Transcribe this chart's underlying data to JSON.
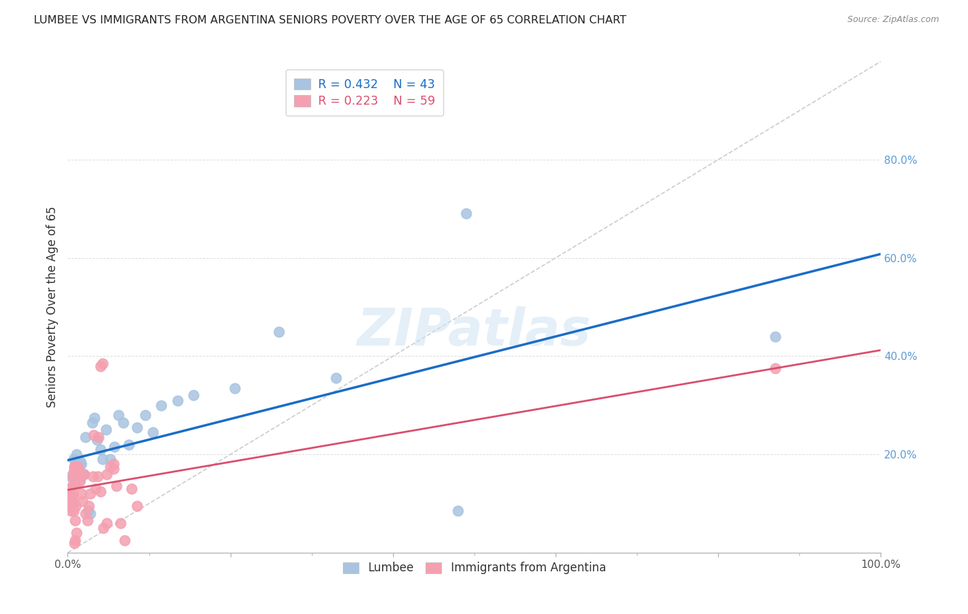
{
  "title": "LUMBEE VS IMMIGRANTS FROM ARGENTINA SENIORS POVERTY OVER THE AGE OF 65 CORRELATION CHART",
  "source": "Source: ZipAtlas.com",
  "ylabel": "Seniors Poverty Over the Age of 65",
  "xlim": [
    0.0,
    1.0
  ],
  "ylim": [
    0.0,
    1.0
  ],
  "lumbee_color": "#a8c4e0",
  "argentina_color": "#f4a0b0",
  "lumbee_line_color": "#1a6cc7",
  "argentina_line_color": "#d94f6e",
  "diagonal_color": "#cccccc",
  "legend_r1": "R = 0.432",
  "legend_n1": "N = 43",
  "legend_r2": "R = 0.223",
  "legend_n2": "N = 59",
  "lumbee_x": [
    0.004,
    0.005,
    0.006,
    0.007,
    0.008,
    0.009,
    0.01,
    0.01,
    0.011,
    0.012,
    0.013,
    0.014,
    0.015,
    0.016,
    0.017,
    0.018,
    0.02,
    0.022,
    0.025,
    0.028,
    0.03,
    0.033,
    0.036,
    0.04,
    0.043,
    0.047,
    0.052,
    0.057,
    0.062,
    0.068,
    0.075,
    0.085,
    0.095,
    0.105,
    0.115,
    0.135,
    0.155,
    0.205,
    0.26,
    0.33,
    0.49,
    0.87,
    0.48
  ],
  "lumbee_y": [
    0.155,
    0.1,
    0.105,
    0.19,
    0.16,
    0.14,
    0.175,
    0.18,
    0.2,
    0.18,
    0.17,
    0.18,
    0.15,
    0.185,
    0.18,
    0.16,
    0.16,
    0.235,
    0.085,
    0.08,
    0.265,
    0.275,
    0.23,
    0.21,
    0.19,
    0.25,
    0.19,
    0.215,
    0.28,
    0.265,
    0.22,
    0.255,
    0.28,
    0.245,
    0.3,
    0.31,
    0.32,
    0.335,
    0.45,
    0.355,
    0.69,
    0.44,
    0.085
  ],
  "argentina_x": [
    0.002,
    0.003,
    0.003,
    0.004,
    0.004,
    0.005,
    0.005,
    0.006,
    0.006,
    0.006,
    0.007,
    0.007,
    0.007,
    0.008,
    0.008,
    0.008,
    0.009,
    0.009,
    0.01,
    0.01,
    0.01,
    0.011,
    0.011,
    0.012,
    0.012,
    0.013,
    0.014,
    0.015,
    0.016,
    0.017,
    0.018,
    0.02,
    0.022,
    0.024,
    0.026,
    0.028,
    0.031,
    0.034,
    0.037,
    0.04,
    0.044,
    0.048,
    0.052,
    0.056,
    0.06,
    0.065,
    0.07,
    0.078,
    0.085,
    0.04,
    0.043,
    0.038,
    0.032,
    0.048,
    0.056,
    0.87,
    0.008,
    0.009,
    0.011
  ],
  "argentina_y": [
    0.12,
    0.095,
    0.13,
    0.085,
    0.095,
    0.1,
    0.115,
    0.14,
    0.12,
    0.155,
    0.085,
    0.1,
    0.165,
    0.155,
    0.175,
    0.175,
    0.165,
    0.065,
    0.155,
    0.095,
    0.14,
    0.155,
    0.175,
    0.17,
    0.175,
    0.155,
    0.165,
    0.145,
    0.155,
    0.12,
    0.105,
    0.16,
    0.08,
    0.065,
    0.095,
    0.12,
    0.155,
    0.13,
    0.155,
    0.125,
    0.05,
    0.06,
    0.175,
    0.18,
    0.135,
    0.06,
    0.025,
    0.13,
    0.095,
    0.38,
    0.385,
    0.235,
    0.24,
    0.16,
    0.17,
    0.375,
    0.02,
    0.025,
    0.04
  ]
}
